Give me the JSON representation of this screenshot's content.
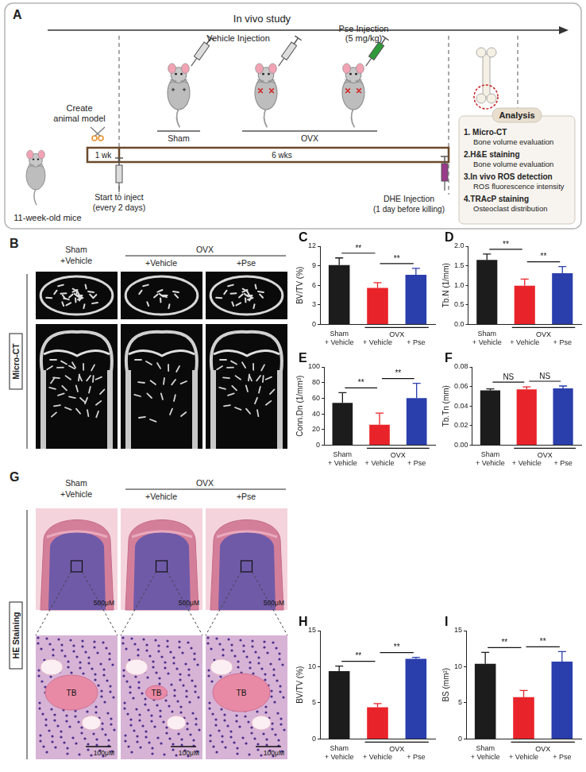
{
  "panels": {
    "A": {
      "label": "A",
      "title": "In vivo study",
      "model": [
        "Create",
        "animal model"
      ],
      "mice": "11-week-old mice",
      "durations": [
        "1 wk",
        "6 wks"
      ],
      "start": [
        "Start to inject",
        "(every 2 days)"
      ],
      "vehicle": "Vehicle Injection",
      "pse": [
        "Pse Injection",
        "(5 mg/kg)"
      ],
      "groups": [
        "Sham",
        "OVX"
      ],
      "dhe": [
        "DHE Injection",
        "(1 day before killing)"
      ],
      "analysis": {
        "title": "Analysis",
        "items": [
          {
            "name": "1. Micro-CT",
            "detail": "Bone volume evaluation"
          },
          {
            "name": "2.H&E staining",
            "detail": "Bone volume evaluation"
          },
          {
            "name": "3.In vivo ROS detection",
            "detail": "ROS fluorescence intensity"
          },
          {
            "name": "4.TRAcP staining",
            "detail": "Osteoclast distribution"
          }
        ]
      }
    },
    "B": {
      "label": "B",
      "side_label": "Micro-CT",
      "first": [
        "Sham",
        "+Vehicle"
      ],
      "group": "OVX",
      "sub": [
        "+Vehicle",
        "+Pse"
      ]
    },
    "G": {
      "label": "G",
      "side_label": "HE Staining",
      "first": [
        "Sham",
        "+Vehicle"
      ],
      "group": "OVX",
      "sub": [
        "+Vehicle",
        "+Pse"
      ],
      "scale_top": "500μM",
      "scale_bottom": "100μM",
      "region": "TB"
    }
  },
  "chart_data": [
    {
      "panel": "C",
      "type": "bar",
      "y_label": "BV/TV (%)",
      "categories": [
        "Sham + Vehicle",
        "+ Vehicle",
        "+ Pse"
      ],
      "x_group": {
        "text": "OVX",
        "from": 1,
        "to": 2
      },
      "values": [
        9.1,
        5.6,
        7.6
      ],
      "errors": [
        1.1,
        0.8,
        1.0
      ],
      "colors": [
        "#1c1c1c",
        "#e8242a",
        "#2a3eac"
      ],
      "ylim": [
        0,
        12
      ],
      "yticks": [
        0,
        3,
        6,
        9,
        12
      ],
      "grid": false,
      "significance": [
        {
          "text": "**",
          "from": 0,
          "to": 1
        },
        {
          "text": "**",
          "from": 1,
          "to": 2
        }
      ]
    },
    {
      "panel": "D",
      "type": "bar",
      "y_label": "Tb.N (1/mm)",
      "categories": [
        "Sham + Vehicle",
        "+ Vehicle",
        "+ Pse"
      ],
      "x_group": {
        "text": "OVX",
        "from": 1,
        "to": 2
      },
      "values": [
        1.65,
        0.99,
        1.31
      ],
      "errors": [
        0.15,
        0.17,
        0.17
      ],
      "colors": [
        "#1c1c1c",
        "#e8242a",
        "#2a3eac"
      ],
      "ylim": [
        0,
        2
      ],
      "yticks": [
        {
          "value": 0,
          "label": "0.0"
        },
        {
          "value": 0.5,
          "label": "0.5"
        },
        {
          "value": 1,
          "label": "1.0"
        },
        {
          "value": 1.5,
          "label": "1.5"
        },
        {
          "value": 2,
          "label": "2.0"
        }
      ],
      "grid": false,
      "significance": [
        {
          "text": "**",
          "from": 0,
          "to": 1
        },
        {
          "text": "**",
          "from": 1,
          "to": 2
        }
      ]
    },
    {
      "panel": "E",
      "type": "bar",
      "y_label": "Conn.Dn (1/mm³)",
      "categories": [
        "Sham + Vehicle",
        "+ Vehicle",
        "+ Pse"
      ],
      "x_group": {
        "text": "OVX",
        "from": 1,
        "to": 2
      },
      "values": [
        54,
        26,
        60
      ],
      "errors": [
        13,
        15,
        19
      ],
      "colors": [
        "#1c1c1c",
        "#e8242a",
        "#2a3eac"
      ],
      "ylim": [
        0,
        100
      ],
      "yticks": [
        0,
        20,
        40,
        60,
        80,
        100
      ],
      "grid": false,
      "significance": [
        {
          "text": "**",
          "from": 0,
          "to": 1
        },
        {
          "text": "**",
          "from": 1,
          "to": 2
        }
      ]
    },
    {
      "panel": "F",
      "type": "bar",
      "y_label": "Tb.Tn (mm)",
      "categories": [
        "Sham + Vehicle",
        "+ Vehicle",
        "+ Pse"
      ],
      "x_group": {
        "text": "OVX",
        "from": 1,
        "to": 2
      },
      "values": [
        0.056,
        0.057,
        0.058
      ],
      "errors": [
        0.0015,
        0.0025,
        0.0025
      ],
      "colors": [
        "#1c1c1c",
        "#e8242a",
        "#2a3eac"
      ],
      "ylim": [
        0,
        0.08
      ],
      "yticks": [
        {
          "value": 0,
          "label": "0.00"
        },
        {
          "value": 0.02,
          "label": "0.02"
        },
        {
          "value": 0.04,
          "label": "0.04"
        },
        {
          "value": 0.06,
          "label": "0.06"
        },
        {
          "value": 0.08,
          "label": "0.08"
        }
      ],
      "grid": false,
      "significance": [
        {
          "text": "NS",
          "from": 0,
          "to": 1
        },
        {
          "text": "NS",
          "from": 1,
          "to": 2
        }
      ]
    },
    {
      "panel": "H",
      "type": "bar",
      "y_label": "BV/TV (%)",
      "categories": [
        "Sham + Vehicle",
        "+ Vehicle",
        "+ Pse"
      ],
      "x_group": {
        "text": "OVX",
        "from": 1,
        "to": 2
      },
      "values": [
        9.4,
        4.4,
        11.1
      ],
      "errors": [
        0.7,
        0.5,
        0.2
      ],
      "colors": [
        "#1c1c1c",
        "#e8242a",
        "#2a3eac"
      ],
      "ylim": [
        0,
        15
      ],
      "yticks": [
        0,
        5,
        10,
        15
      ],
      "grid": false,
      "significance": [
        {
          "text": "**",
          "from": 0,
          "to": 1
        },
        {
          "text": "**",
          "from": 1,
          "to": 2
        }
      ]
    },
    {
      "panel": "I",
      "type": "bar",
      "y_label": "BS (mm²)",
      "categories": [
        "Sham + Vehicle",
        "+ Vehicle",
        "+ Pse"
      ],
      "x_group": {
        "text": "OVX",
        "from": 1,
        "to": 2
      },
      "values": [
        10.4,
        5.8,
        10.7
      ],
      "errors": [
        1.6,
        0.9,
        1.4
      ],
      "colors": [
        "#1c1c1c",
        "#e8242a",
        "#2a3eac"
      ],
      "ylim": [
        0,
        15
      ],
      "yticks": [
        0,
        5,
        10,
        15
      ],
      "grid": false,
      "significance": [
        {
          "text": "**",
          "from": 0,
          "to": 1
        },
        {
          "text": "**",
          "from": 1,
          "to": 2
        }
      ]
    }
  ]
}
